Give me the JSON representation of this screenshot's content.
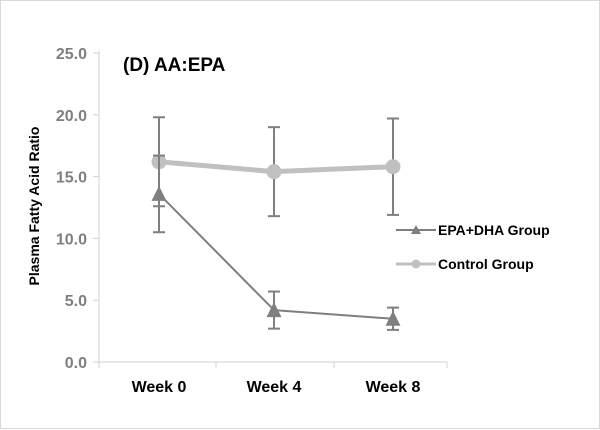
{
  "chart_data": {
    "type": "line",
    "title": "(D) AA:EPA",
    "xlabel": "",
    "ylabel": "Plasma Fatty Acid Ratio",
    "categories": [
      "Week 0",
      "Week 4",
      "Week 8"
    ],
    "ylim": [
      0,
      25
    ],
    "yticks": [
      "0.0",
      "5.0",
      "10.0",
      "15.0",
      "20.0",
      "25.0"
    ],
    "grid": false,
    "legend_position": "right",
    "series": [
      {
        "name": "EPA+DHA Group",
        "values": [
          13.6,
          4.2,
          3.5
        ],
        "error": [
          3.1,
          1.5,
          0.9
        ],
        "marker": "triangle",
        "color": "#7f7f7f"
      },
      {
        "name": "Control Group",
        "values": [
          16.2,
          15.4,
          15.8
        ],
        "error": [
          3.6,
          3.6,
          3.9
        ],
        "marker": "circle",
        "color": "#c0c0c0"
      }
    ]
  }
}
